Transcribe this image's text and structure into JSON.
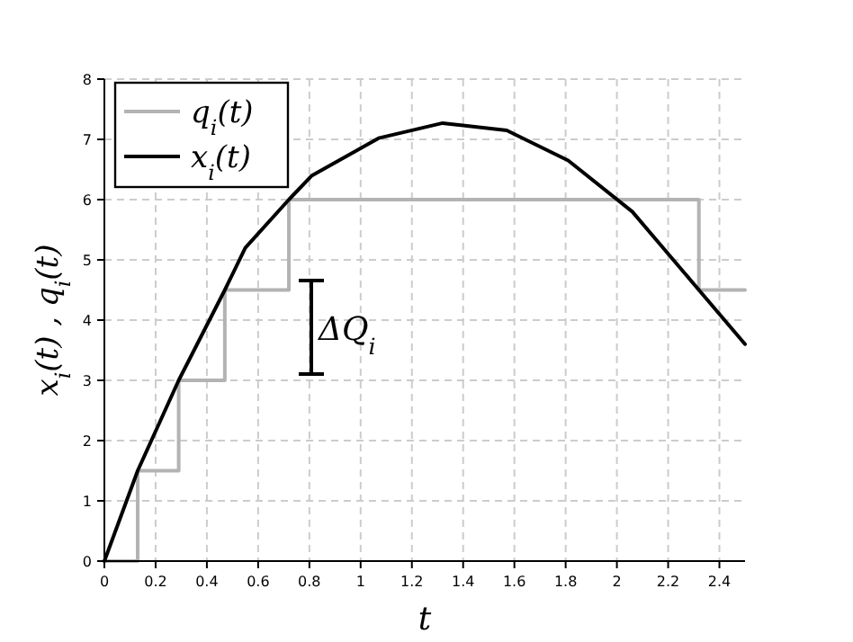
{
  "chart_data": {
    "type": "line",
    "xlabel": "t",
    "ylabel": "x$_{i}$(t) , q$_{i}$(t)",
    "xlim": [
      0,
      2.5
    ],
    "xticks": [
      0,
      0.2,
      0.4,
      0.6,
      0.8,
      1,
      1.2,
      1.4,
      1.6,
      1.8,
      2,
      2.2,
      2.4
    ],
    "ylim": [
      0,
      8
    ],
    "yticks": [
      0,
      1,
      2,
      3,
      4,
      5,
      6,
      7,
      8
    ],
    "grid": true,
    "legend": "top left",
    "series": [
      {
        "name": "q$_{i}$(t)",
        "type": "step",
        "color": "#b3b3b3",
        "x": [
          0,
          0.13,
          0.29,
          0.47,
          0.72,
          2.32,
          2.5
        ],
        "values": [
          0,
          1.5,
          3,
          4.5,
          6,
          4.5,
          4.5
        ]
      },
      {
        "name": "x$_{i}$(t)",
        "color": "#000000",
        "x": [
          0,
          0.13,
          0.29,
          0.47,
          0.55,
          0.72,
          0.81,
          1.07,
          1.32,
          1.57,
          1.81,
          2.06,
          2.32,
          2.5
        ],
        "values": [
          0,
          1.5,
          3,
          4.5,
          5.2,
          6,
          6.4,
          7.02,
          7.27,
          7.15,
          6.65,
          5.8,
          4.5,
          3.6
        ]
      }
    ],
    "annotations": [
      "ΔQ$_{i}$"
    ]
  }
}
